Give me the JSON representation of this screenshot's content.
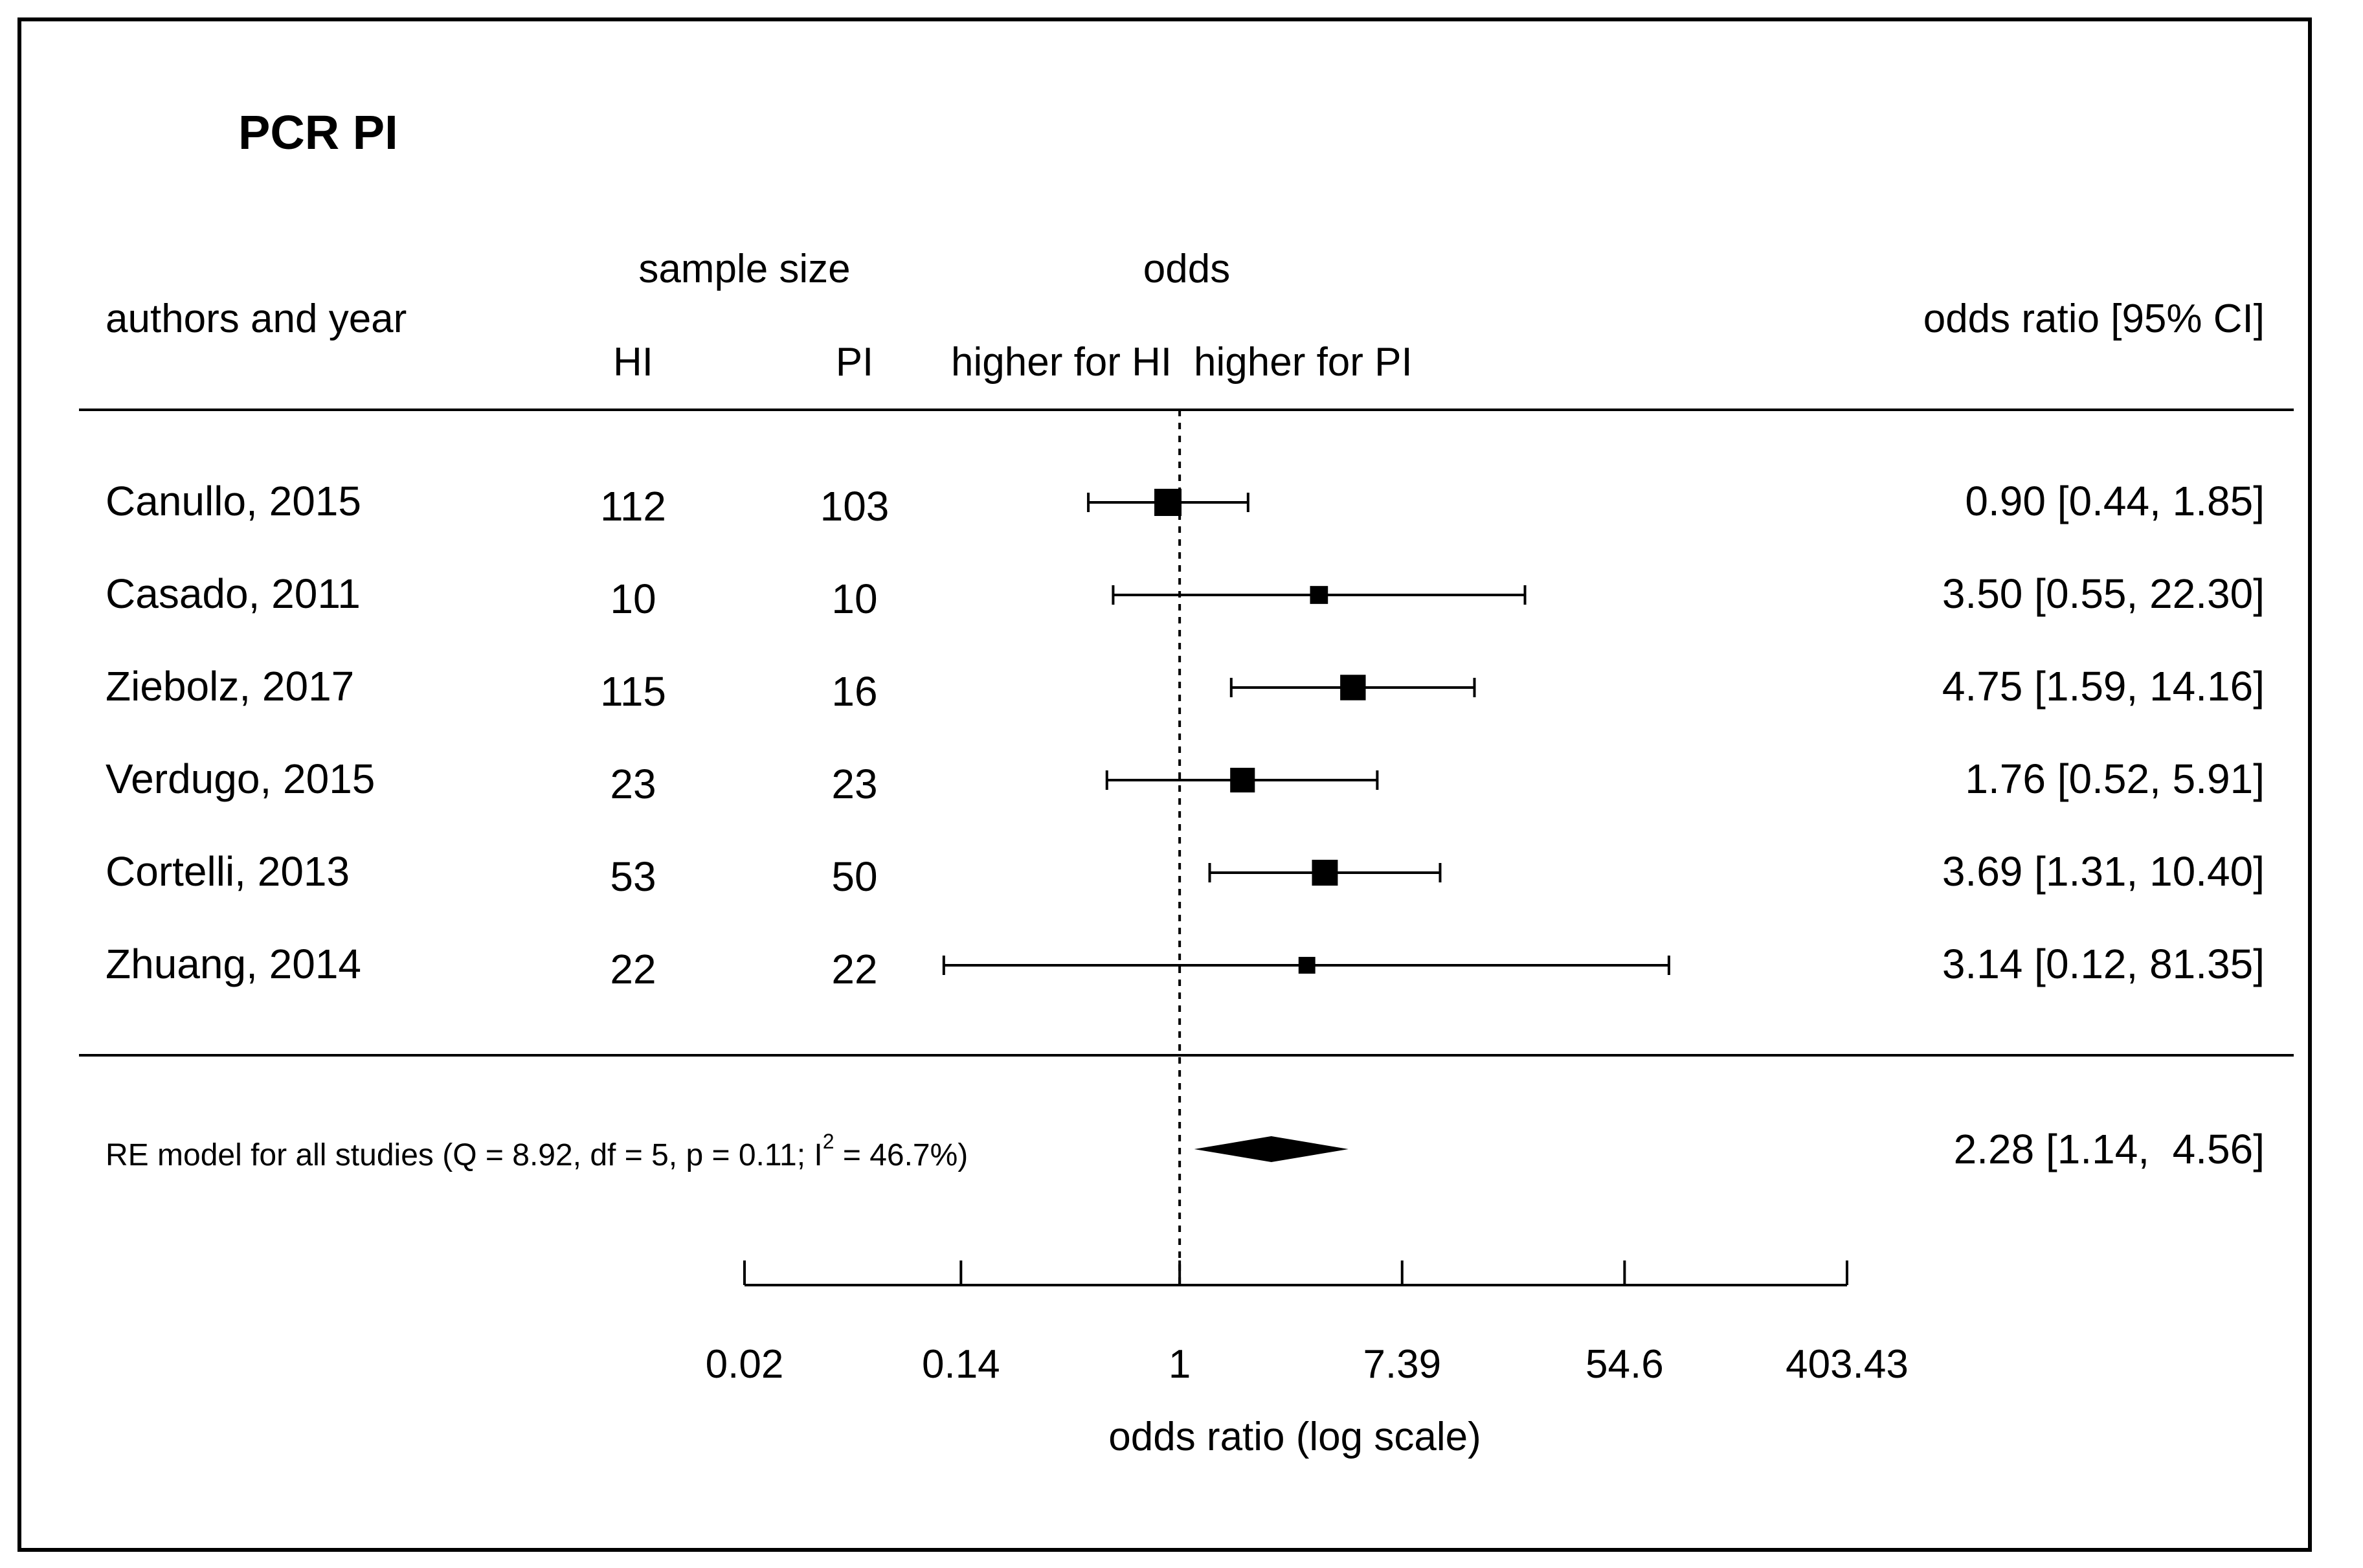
{
  "chart_data": {
    "type": "forest",
    "title": "PCR PI",
    "headers": {
      "study": "authors and year",
      "sample_size": "sample size",
      "group1": "HI",
      "group2": "PI",
      "odds": "odds",
      "direction_left": "higher for HI",
      "direction_right": "higher for PI",
      "estimate": "odds ratio [95% CI]"
    },
    "studies": [
      {
        "label": "Canullo, 2015",
        "n_hi": "112",
        "n_pi": "103",
        "or": 0.9,
        "lo": 0.44,
        "hi": 1.85,
        "text": "0.90 [0.44,  1.85]",
        "weight": 1.0
      },
      {
        "label": "Casado, 2011",
        "n_hi": "10",
        "n_pi": "10",
        "or": 3.5,
        "lo": 0.55,
        "hi": 22.3,
        "text": "3.50 [0.55, 22.30]",
        "weight": 0.45
      },
      {
        "label": "Ziebolz, 2017",
        "n_hi": "115",
        "n_pi": "16",
        "or": 4.75,
        "lo": 1.59,
        "hi": 14.16,
        "text": "4.75 [1.59, 14.16]",
        "weight": 0.9
      },
      {
        "label": "Verdugo, 2015",
        "n_hi": "23",
        "n_pi": "23",
        "or": 1.76,
        "lo": 0.52,
        "hi": 5.91,
        "text": "1.76 [0.52,  5.91]",
        "weight": 0.85
      },
      {
        "label": "Cortelli, 2013",
        "n_hi": "53",
        "n_pi": "50",
        "or": 3.69,
        "lo": 1.31,
        "hi": 10.4,
        "text": "3.69 [1.31, 10.40]",
        "weight": 0.92
      },
      {
        "label": "Zhuang, 2014",
        "n_hi": "22",
        "n_pi": "22",
        "or": 3.14,
        "lo": 0.12,
        "hi": 81.35,
        "text": "3.14 [0.12, 81.35]",
        "weight": 0.38
      }
    ],
    "summary": {
      "label_main": "RE model for all studies (Q = 8.92, df = 5, p = 0.11; I",
      "label_sup": "2",
      "label_tail": " = 46.7%)",
      "or": 2.28,
      "lo": 1.14,
      "hi": 4.56,
      "text": "2.28 [1.14,  4.56]"
    },
    "reference_line": 1,
    "x_scale": "log",
    "xlim": [
      0.02,
      403.43
    ],
    "x_ticks": [
      0.02,
      0.14,
      1,
      7.39,
      54.6,
      403.43
    ],
    "x_tick_labels": [
      "0.02",
      "0.14",
      "1",
      "7.39",
      "54.6",
      "403.43"
    ],
    "xlabel": "odds ratio (log scale)"
  }
}
